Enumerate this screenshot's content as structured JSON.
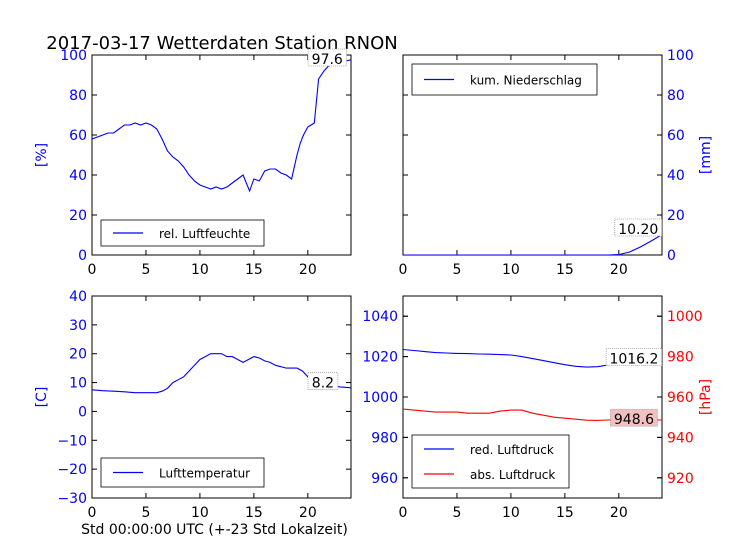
{
  "title": "2017-03-17 Wetterdaten Station RNON",
  "colors": {
    "blue": "#0000ff",
    "red": "#ff0000",
    "axis": "#000000",
    "red_box": "#f2c0c0"
  },
  "chart_data": [
    {
      "id": "humidity",
      "type": "line",
      "ylabel": "[%]",
      "ylabel_color": "blue",
      "ylabel_side": "left",
      "xlim": [
        0,
        24
      ],
      "ylim": [
        0,
        100
      ],
      "xticks": [
        "0",
        "5",
        "10",
        "15",
        "20"
      ],
      "yticks": [
        "0",
        "20",
        "40",
        "60",
        "80",
        "100"
      ],
      "grid": false,
      "legend_position": "lower-left",
      "series": [
        {
          "name": "rel. Luftfeuchte",
          "color": "blue",
          "x": [
            0,
            0.5,
            1,
            1.5,
            2,
            2.5,
            3,
            3.5,
            4,
            4.5,
            5,
            5.5,
            6,
            6.5,
            7,
            7.5,
            8,
            8.5,
            9,
            9.5,
            10,
            10.5,
            11,
            11.5,
            12,
            12.5,
            13,
            13.5,
            14,
            14.3,
            14.6,
            15,
            15.5,
            16,
            16.5,
            17,
            17.5,
            18,
            18.5,
            19,
            19.3,
            19.6,
            20,
            20.3,
            20.6,
            21,
            21.5,
            22,
            22.5,
            23,
            23.5,
            24
          ],
          "y": [
            58,
            59,
            60,
            61,
            61,
            63,
            65,
            65,
            66,
            65,
            66,
            65,
            63,
            58,
            52,
            49,
            47,
            44,
            40,
            37,
            35,
            34,
            33,
            34,
            33,
            34,
            36,
            38,
            40,
            36,
            32,
            38,
            37,
            42,
            43,
            43,
            41,
            40,
            38,
            50,
            56,
            60,
            64,
            65,
            66,
            88,
            92,
            95,
            96,
            96,
            97,
            97.6
          ]
        }
      ],
      "annotations": [
        {
          "text": "97.6",
          "x": 21.8,
          "y": 98,
          "box": "gray"
        }
      ]
    },
    {
      "id": "precipitation",
      "type": "line",
      "ylabel": "[mm]",
      "ylabel_color": "blue",
      "ylabel_side": "right",
      "xlim": [
        0,
        24
      ],
      "ylim": [
        0,
        100
      ],
      "xticks": [
        "0",
        "5",
        "10",
        "15",
        "20"
      ],
      "yticks": [
        "0",
        "20",
        "40",
        "60",
        "80",
        "100"
      ],
      "grid": false,
      "legend_position": "upper-left",
      "series": [
        {
          "name": "kum. Niederschlag",
          "color": "blue",
          "x": [
            0,
            19,
            20,
            21,
            22,
            23,
            24
          ],
          "y": [
            0,
            0,
            0.2,
            1.5,
            4,
            7,
            10.2
          ]
        }
      ],
      "annotations": [
        {
          "text": "10.20",
          "x": 21.8,
          "y": 13,
          "box": "gray"
        }
      ]
    },
    {
      "id": "temperature",
      "type": "line",
      "ylabel": "[C]",
      "ylabel_color": "blue",
      "ylabel_side": "left",
      "xlabel": "Std 00:00:00 UTC (+-23 Std Lokalzeit)",
      "xlim": [
        0,
        24
      ],
      "ylim": [
        -30,
        40
      ],
      "xticks": [
        "0",
        "5",
        "10",
        "15",
        "20"
      ],
      "yticks": [
        "−30",
        "−20",
        "−10",
        "0",
        "10",
        "20",
        "30",
        "40"
      ],
      "grid": false,
      "legend_position": "lower-left",
      "series": [
        {
          "name": "Lufttemperatur",
          "color": "blue",
          "x": [
            0,
            1,
            2,
            3,
            4,
            5,
            6,
            6.5,
            7,
            7.5,
            8,
            8.5,
            9,
            9.5,
            10,
            10.5,
            11,
            11.5,
            12,
            12.5,
            13,
            13.5,
            14,
            14.5,
            15,
            15.5,
            16,
            16.5,
            17,
            17.5,
            18,
            18.5,
            19,
            19.5,
            20,
            20.5,
            21,
            21.5,
            22,
            23,
            24
          ],
          "y": [
            7.5,
            7.2,
            7,
            6.8,
            6.5,
            6.5,
            6.5,
            7,
            8,
            10,
            11,
            12,
            14,
            16,
            18,
            19,
            20,
            20,
            20,
            19,
            19,
            18,
            17,
            18,
            19,
            18.5,
            17.5,
            17,
            16,
            15.5,
            15,
            15,
            15,
            14,
            12,
            11,
            10,
            9.5,
            9,
            8.5,
            8.2
          ]
        }
      ],
      "annotations": [
        {
          "text": "8.2",
          "x": 21.4,
          "y": 10,
          "box": "gray"
        }
      ]
    },
    {
      "id": "pressure",
      "type": "line",
      "ylabel": "[hPa]",
      "ylabel_color": "red",
      "ylabel_side": "right",
      "xlim": [
        0,
        24
      ],
      "ylim": [
        950,
        1050
      ],
      "ylim_right": [
        910,
        1010
      ],
      "xticks": [
        "0",
        "5",
        "10",
        "15",
        "20"
      ],
      "yticks": [
        "960",
        "980",
        "1000",
        "1020",
        "1040"
      ],
      "yticks_right": [
        "920",
        "940",
        "960",
        "980",
        "1000"
      ],
      "grid": false,
      "legend_position": "lower-left",
      "series": [
        {
          "name": "red. Luftdruck",
          "color": "blue",
          "axis": "left",
          "x": [
            0,
            1,
            2,
            3,
            4,
            5,
            6,
            7,
            8,
            9,
            10,
            11,
            12,
            13,
            14,
            15,
            16,
            17,
            18,
            19,
            20,
            21,
            22,
            23,
            24
          ],
          "y": [
            1023.5,
            1023,
            1022.5,
            1022,
            1021.8,
            1021.6,
            1021.5,
            1021.3,
            1021.2,
            1021,
            1020.8,
            1020,
            1019,
            1018,
            1017,
            1016,
            1015.2,
            1014.8,
            1015,
            1015.8,
            1016,
            1016,
            1016.1,
            1016.2,
            1016.2
          ]
        },
        {
          "name": "abs. Luftdruck",
          "color": "red",
          "axis": "right",
          "x": [
            0,
            1,
            2,
            3,
            4,
            5,
            6,
            7,
            8,
            9,
            10,
            11,
            12,
            13,
            14,
            15,
            16,
            17,
            18,
            19,
            20,
            21,
            22,
            23,
            24
          ],
          "y": [
            954,
            953.5,
            953,
            952.5,
            952.5,
            952.5,
            952,
            952,
            952,
            953,
            953.5,
            953.5,
            952,
            951,
            950,
            949.5,
            949,
            948.5,
            948.4,
            948.6,
            948.6,
            948.6,
            948.6,
            948.6,
            948.6
          ]
        }
      ],
      "annotations": [
        {
          "text": "1016.2",
          "x": 21.4,
          "y": 1019,
          "axis": "left",
          "box": "gray"
        },
        {
          "text": "948.6",
          "x": 21.4,
          "y": 949,
          "axis": "right",
          "box": "red"
        }
      ]
    }
  ]
}
